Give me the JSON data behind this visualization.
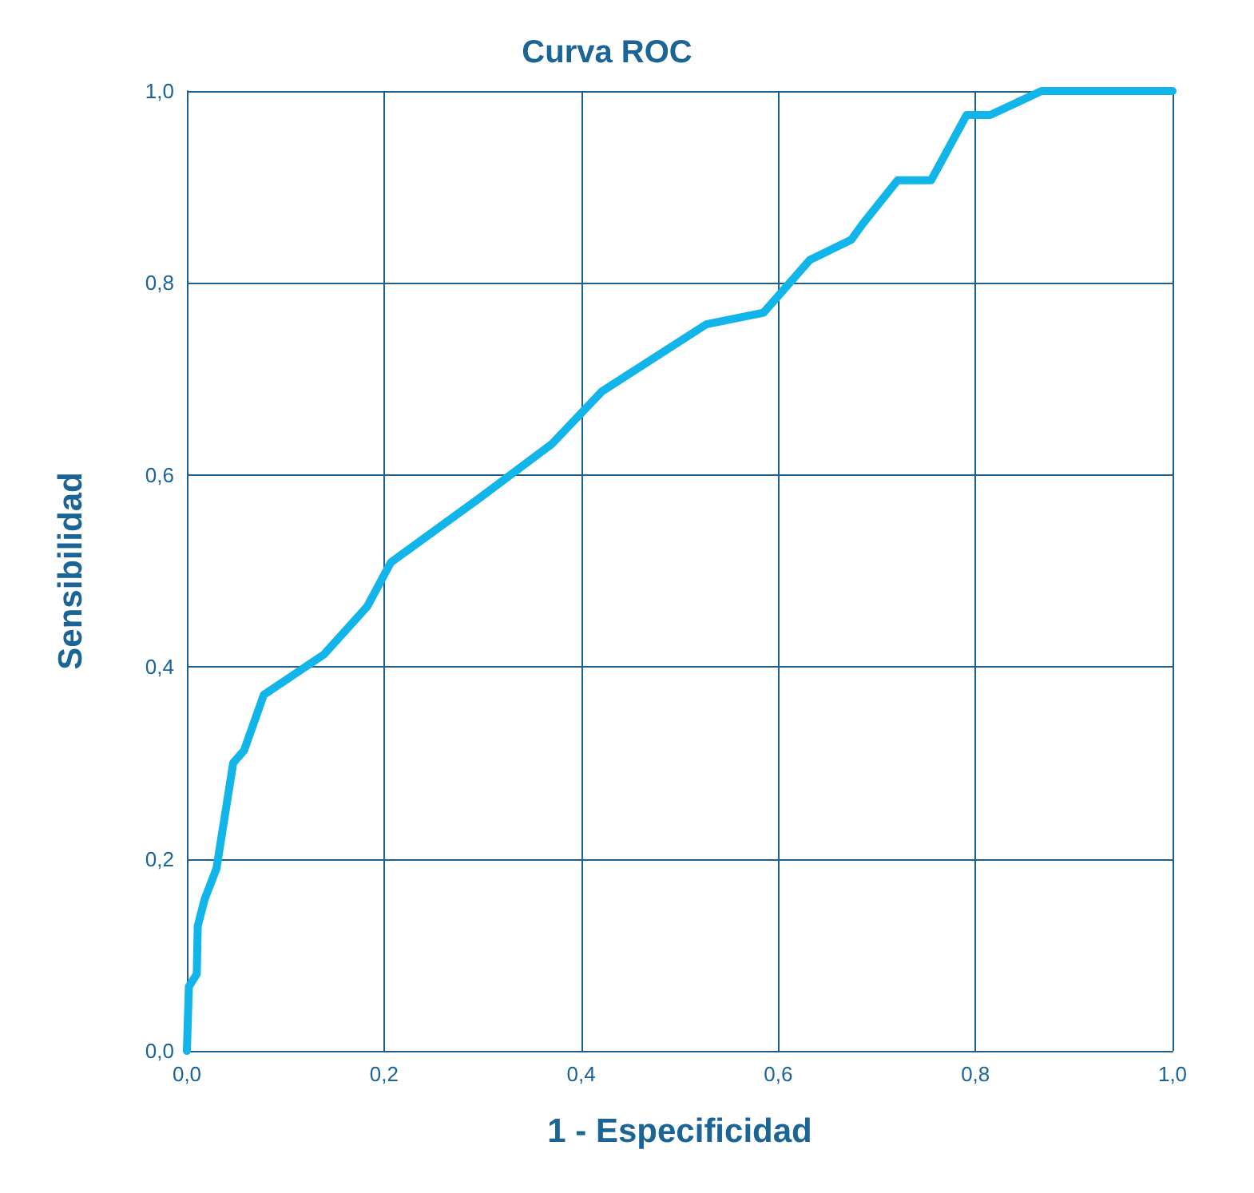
{
  "chart_data": {
    "type": "line",
    "title": "Curva ROC",
    "xlabel": "1 - Especificidad",
    "ylabel": "Sensibilidad",
    "series": [
      {
        "color": "#12b5ea",
        "x": [
          0,
          0.002,
          0.01,
          0.011,
          0.018,
          0.03,
          0.047,
          0.058,
          0.078,
          0.139,
          0.183,
          0.207,
          0.297,
          0.37,
          0.421,
          0.527,
          0.585,
          0.632,
          0.674,
          0.686,
          0.721,
          0.755,
          0.791,
          0.815,
          0.867,
          1
        ],
        "values": [
          0,
          0.067,
          0.08,
          0.13,
          0.158,
          0.19,
          0.3,
          0.313,
          0.371,
          0.413,
          0.463,
          0.509,
          0.576,
          0.632,
          0.687,
          0.757,
          0.769,
          0.824,
          0.845,
          0.862,
          0.907,
          0.907,
          0.975,
          0.975,
          1,
          1
        ]
      }
    ],
    "xlim": [
      0,
      1
    ],
    "ylim": [
      0,
      1
    ],
    "xticks": [
      {
        "value": 0,
        "label": "0,0"
      },
      {
        "value": 0.2,
        "label": "0,2"
      },
      {
        "value": 0.4,
        "label": "0,4"
      },
      {
        "value": 0.6,
        "label": "0,6"
      },
      {
        "value": 0.8,
        "label": "0,8"
      },
      {
        "value": 1,
        "label": "1,0"
      }
    ],
    "yticks": [
      {
        "value": 0,
        "label": "0,0"
      },
      {
        "value": 0.2,
        "label": "0,2"
      },
      {
        "value": 0.4,
        "label": "0,4"
      },
      {
        "value": 0.6,
        "label": "0,6"
      },
      {
        "value": 0.8,
        "label": "0,8"
      },
      {
        "value": 1,
        "label": "1,0"
      }
    ],
    "grid": true,
    "marker": "none",
    "line_style": "solid"
  }
}
